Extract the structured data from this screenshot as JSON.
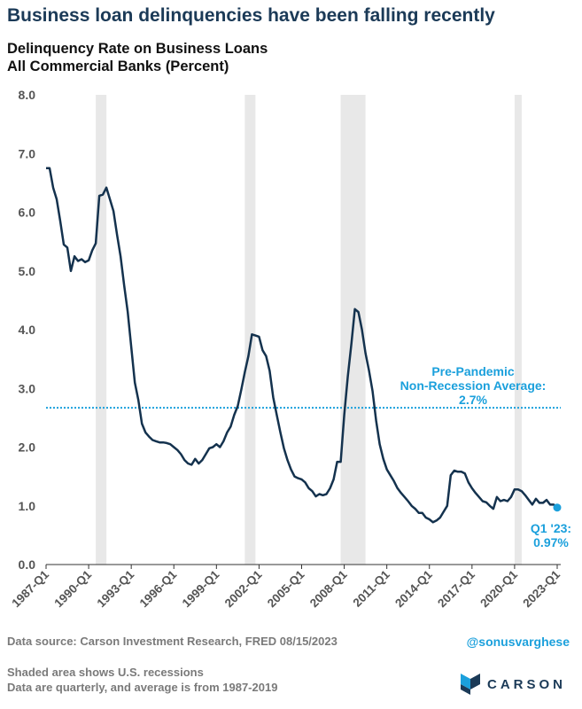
{
  "headline": "Business loan delinquencies have been falling recently",
  "subtitle_line1": "Delinquency Rate on Business Loans",
  "subtitle_line2": "All Commercial Banks (Percent)",
  "footer": {
    "source": "Data source: Carson Investment Research, FRED   08/15/2023",
    "handle": "@sonusvarghese",
    "note1": "Shaded area shows U.S. recessions",
    "note2": "Data are quarterly, and average is from 1987-2019",
    "brand": "CARSON"
  },
  "colors": {
    "line": "#14324e",
    "accent": "#1ba0dc",
    "recession": "#e8e8e8",
    "headline": "#1b3a57"
  },
  "chart_data": {
    "type": "line",
    "ylim": [
      0,
      8
    ],
    "yticks": [
      "0.0",
      "1.0",
      "2.0",
      "3.0",
      "4.0",
      "5.0",
      "6.0",
      "7.0",
      "8.0"
    ],
    "xlim": [
      1987.0,
      2023.25
    ],
    "xticks": [
      {
        "label": "1987-Q1",
        "x": 1987.0
      },
      {
        "label": "1990-Q1",
        "x": 1990.0
      },
      {
        "label": "1993-Q1",
        "x": 1993.0
      },
      {
        "label": "1996-Q1",
        "x": 1996.0
      },
      {
        "label": "1999-Q1",
        "x": 1999.0
      },
      {
        "label": "2002-Q1",
        "x": 2002.0
      },
      {
        "label": "2005-Q1",
        "x": 2005.0
      },
      {
        "label": "2008-Q1",
        "x": 2008.0
      },
      {
        "label": "2011-Q1",
        "x": 2011.0
      },
      {
        "label": "2014-Q1",
        "x": 2014.0
      },
      {
        "label": "2017-Q1",
        "x": 2017.0
      },
      {
        "label": "2020-Q1",
        "x": 2020.0
      },
      {
        "label": "2023-Q1",
        "x": 2023.0
      }
    ],
    "recessions": [
      [
        1990.5,
        1991.25
      ],
      [
        2001.0,
        2001.75
      ],
      [
        2007.75,
        2009.5
      ],
      [
        2020.0,
        2020.5
      ]
    ],
    "average": {
      "value": 2.67,
      "label_lines": [
        "Pre-Pandemic",
        "Non-Recession Average:",
        "2.7%"
      ]
    },
    "endpoint": {
      "x": 2023.0,
      "y": 0.97,
      "label_lines": [
        "Q1 '23:",
        "0.97%"
      ]
    },
    "series": [
      {
        "points": [
          [
            1987.0,
            6.75
          ],
          [
            1987.25,
            6.75
          ],
          [
            1987.5,
            6.42
          ],
          [
            1987.75,
            6.22
          ],
          [
            1988.0,
            5.85
          ],
          [
            1988.25,
            5.45
          ],
          [
            1988.5,
            5.4
          ],
          [
            1988.75,
            5.0
          ],
          [
            1989.0,
            5.25
          ],
          [
            1989.25,
            5.17
          ],
          [
            1989.5,
            5.2
          ],
          [
            1989.75,
            5.15
          ],
          [
            1990.0,
            5.18
          ],
          [
            1990.25,
            5.35
          ],
          [
            1990.5,
            5.47
          ],
          [
            1990.75,
            6.28
          ],
          [
            1991.0,
            6.3
          ],
          [
            1991.25,
            6.42
          ],
          [
            1991.5,
            6.22
          ],
          [
            1991.75,
            6.02
          ],
          [
            1992.0,
            5.62
          ],
          [
            1992.25,
            5.25
          ],
          [
            1992.5,
            4.75
          ],
          [
            1992.75,
            4.3
          ],
          [
            1993.0,
            3.7
          ],
          [
            1993.25,
            3.1
          ],
          [
            1993.5,
            2.8
          ],
          [
            1993.75,
            2.4
          ],
          [
            1994.0,
            2.25
          ],
          [
            1994.25,
            2.18
          ],
          [
            1994.5,
            2.12
          ],
          [
            1994.75,
            2.1
          ],
          [
            1995.0,
            2.08
          ],
          [
            1995.25,
            2.08
          ],
          [
            1995.5,
            2.07
          ],
          [
            1995.75,
            2.05
          ],
          [
            1996.0,
            2.0
          ],
          [
            1996.25,
            1.95
          ],
          [
            1996.5,
            1.88
          ],
          [
            1996.75,
            1.78
          ],
          [
            1997.0,
            1.72
          ],
          [
            1997.25,
            1.7
          ],
          [
            1997.5,
            1.8
          ],
          [
            1997.75,
            1.72
          ],
          [
            1998.0,
            1.78
          ],
          [
            1998.25,
            1.88
          ],
          [
            1998.5,
            1.98
          ],
          [
            1998.75,
            2.0
          ],
          [
            1999.0,
            2.05
          ],
          [
            1999.25,
            2.0
          ],
          [
            1999.5,
            2.1
          ],
          [
            1999.75,
            2.25
          ],
          [
            2000.0,
            2.35
          ],
          [
            2000.25,
            2.55
          ],
          [
            2000.5,
            2.7
          ],
          [
            2000.75,
            2.98
          ],
          [
            2001.0,
            3.28
          ],
          [
            2001.25,
            3.55
          ],
          [
            2001.5,
            3.92
          ],
          [
            2001.75,
            3.9
          ],
          [
            2002.0,
            3.88
          ],
          [
            2002.25,
            3.65
          ],
          [
            2002.5,
            3.55
          ],
          [
            2002.75,
            3.3
          ],
          [
            2003.0,
            2.85
          ],
          [
            2003.25,
            2.55
          ],
          [
            2003.5,
            2.25
          ],
          [
            2003.75,
            1.98
          ],
          [
            2004.0,
            1.78
          ],
          [
            2004.25,
            1.62
          ],
          [
            2004.5,
            1.5
          ],
          [
            2004.75,
            1.47
          ],
          [
            2005.0,
            1.45
          ],
          [
            2005.25,
            1.4
          ],
          [
            2005.5,
            1.3
          ],
          [
            2005.75,
            1.25
          ],
          [
            2006.0,
            1.16
          ],
          [
            2006.25,
            1.2
          ],
          [
            2006.5,
            1.18
          ],
          [
            2006.75,
            1.2
          ],
          [
            2007.0,
            1.3
          ],
          [
            2007.25,
            1.45
          ],
          [
            2007.5,
            1.75
          ],
          [
            2007.75,
            1.75
          ],
          [
            2008.0,
            2.55
          ],
          [
            2008.25,
            3.2
          ],
          [
            2008.5,
            3.75
          ],
          [
            2008.75,
            4.35
          ],
          [
            2009.0,
            4.3
          ],
          [
            2009.25,
            4.0
          ],
          [
            2009.5,
            3.6
          ],
          [
            2009.75,
            3.3
          ],
          [
            2010.0,
            2.95
          ],
          [
            2010.25,
            2.45
          ],
          [
            2010.5,
            2.05
          ],
          [
            2010.75,
            1.8
          ],
          [
            2011.0,
            1.62
          ],
          [
            2011.25,
            1.52
          ],
          [
            2011.5,
            1.42
          ],
          [
            2011.75,
            1.3
          ],
          [
            2012.0,
            1.22
          ],
          [
            2012.25,
            1.15
          ],
          [
            2012.5,
            1.08
          ],
          [
            2012.75,
            1.0
          ],
          [
            2013.0,
            0.95
          ],
          [
            2013.25,
            0.88
          ],
          [
            2013.5,
            0.88
          ],
          [
            2013.75,
            0.8
          ],
          [
            2014.0,
            0.77
          ],
          [
            2014.25,
            0.72
          ],
          [
            2014.5,
            0.75
          ],
          [
            2014.75,
            0.8
          ],
          [
            2015.0,
            0.9
          ],
          [
            2015.25,
            1.0
          ],
          [
            2015.5,
            1.52
          ],
          [
            2015.75,
            1.6
          ],
          [
            2016.0,
            1.58
          ],
          [
            2016.25,
            1.58
          ],
          [
            2016.5,
            1.55
          ],
          [
            2016.75,
            1.4
          ],
          [
            2017.0,
            1.3
          ],
          [
            2017.25,
            1.22
          ],
          [
            2017.5,
            1.15
          ],
          [
            2017.75,
            1.08
          ],
          [
            2018.0,
            1.06
          ],
          [
            2018.25,
            1.0
          ],
          [
            2018.5,
            0.95
          ],
          [
            2018.75,
            1.15
          ],
          [
            2019.0,
            1.08
          ],
          [
            2019.25,
            1.1
          ],
          [
            2019.5,
            1.08
          ],
          [
            2019.75,
            1.15
          ],
          [
            2020.0,
            1.28
          ],
          [
            2020.25,
            1.28
          ],
          [
            2020.5,
            1.25
          ],
          [
            2020.75,
            1.18
          ],
          [
            2021.0,
            1.1
          ],
          [
            2021.25,
            1.02
          ],
          [
            2021.5,
            1.12
          ],
          [
            2021.75,
            1.05
          ],
          [
            2022.0,
            1.05
          ],
          [
            2022.25,
            1.1
          ],
          [
            2022.5,
            1.02
          ],
          [
            2022.75,
            1.02
          ],
          [
            2023.0,
            0.97
          ]
        ]
      }
    ]
  }
}
